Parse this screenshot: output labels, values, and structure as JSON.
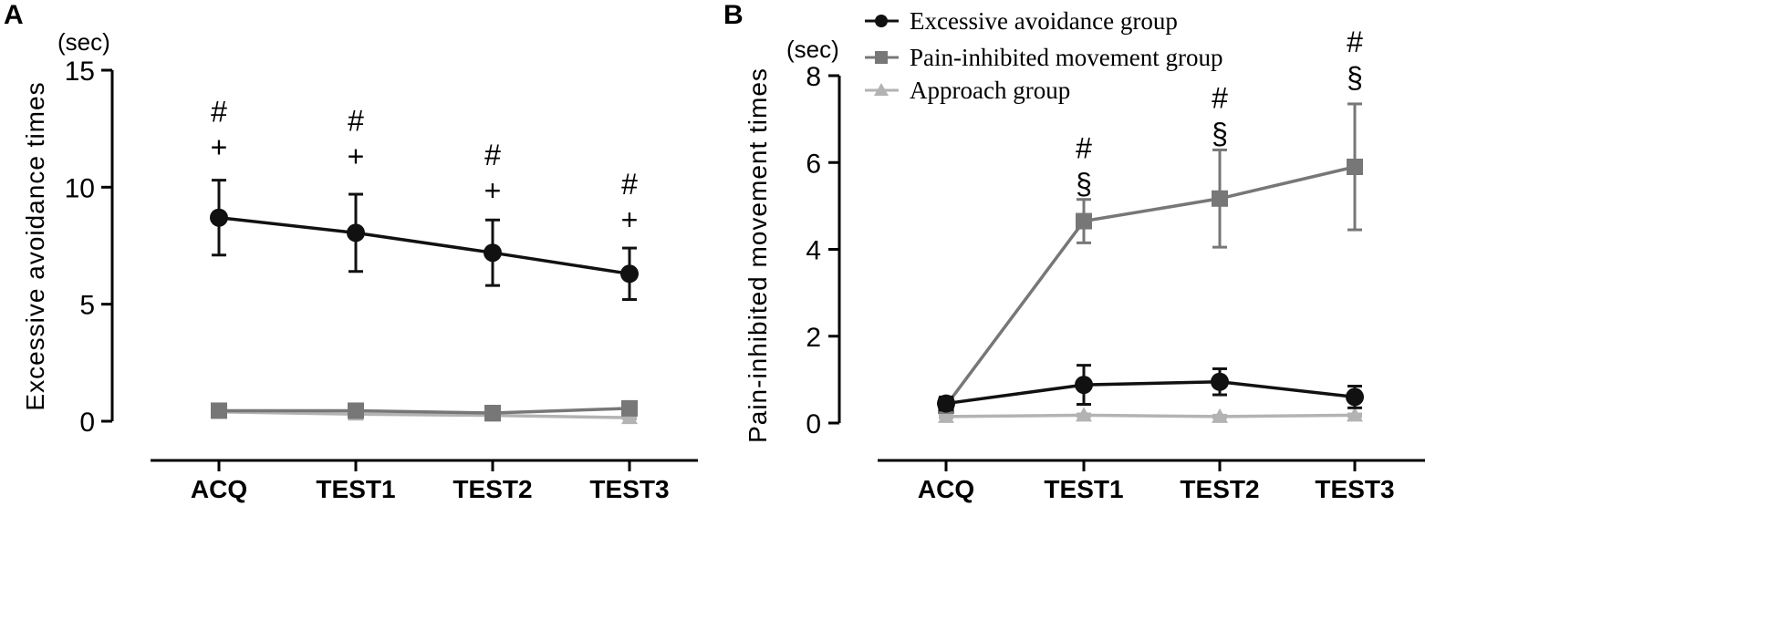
{
  "colors": {
    "excessive": "#111111",
    "pain": "#777777",
    "approach": "#b3b3b3",
    "axis": "#000000"
  },
  "legend": [
    {
      "name": "Excessive avoidance group",
      "marker": "circle",
      "color": "#111111"
    },
    {
      "name": "Pain-inhibited movement group",
      "marker": "square",
      "color": "#777777"
    },
    {
      "name": "Approach group",
      "marker": "triangle",
      "color": "#b3b3b3"
    }
  ],
  "chart_data": [
    {
      "panel": "A",
      "type": "line",
      "unit_label": "(sec)",
      "ylabel": "Excessive avoidance times",
      "categories": [
        "ACQ",
        "TEST1",
        "TEST2",
        "TEST3"
      ],
      "ylim": [
        0,
        15
      ],
      "yticks": [
        0,
        5,
        10,
        15
      ],
      "series": [
        {
          "name": "Excessive avoidance group",
          "marker": "circle",
          "color": "#111111",
          "values": [
            8.7,
            8.05,
            7.2,
            6.3
          ],
          "errors": [
            1.6,
            1.65,
            1.4,
            1.1
          ]
        },
        {
          "name": "Pain-inhibited movement group",
          "marker": "square",
          "color": "#777777",
          "values": [
            0.45,
            0.45,
            0.35,
            0.55
          ],
          "errors": [
            0.05,
            0.05,
            0.05,
            0.05
          ]
        },
        {
          "name": "Approach group",
          "marker": "triangle",
          "color": "#b3b3b3",
          "values": [
            0.4,
            0.3,
            0.25,
            0.15
          ],
          "errors": [
            0.05,
            0.05,
            0.05,
            0.05
          ]
        }
      ],
      "annotations": [
        {
          "category": "ACQ",
          "y": 12.8,
          "lines": [
            "#",
            "+"
          ]
        },
        {
          "category": "TEST1",
          "y": 12.4,
          "lines": [
            "#",
            "+"
          ]
        },
        {
          "category": "TEST2",
          "y": 10.95,
          "lines": [
            "#",
            "+"
          ]
        },
        {
          "category": "TEST3",
          "y": 9.7,
          "lines": [
            "#",
            "+"
          ]
        }
      ]
    },
    {
      "panel": "B",
      "type": "line",
      "unit_label": "(sec)",
      "ylabel": "Pain-inhibited movement times",
      "categories": [
        "ACQ",
        "TEST1",
        "TEST2",
        "TEST3"
      ],
      "ylim": [
        0,
        8
      ],
      "yticks": [
        0,
        2,
        4,
        6,
        8
      ],
      "series": [
        {
          "name": "Excessive avoidance group",
          "marker": "circle",
          "color": "#111111",
          "values": [
            0.45,
            0.88,
            0.95,
            0.6
          ],
          "errors": [
            0.15,
            0.45,
            0.3,
            0.25
          ]
        },
        {
          "name": "Pain-inhibited movement group",
          "marker": "square",
          "color": "#777777",
          "values": [
            0.4,
            4.65,
            5.17,
            5.9
          ],
          "errors": [
            0.1,
            0.5,
            1.12,
            1.45
          ]
        },
        {
          "name": "Approach group",
          "marker": "triangle",
          "color": "#b3b3b3",
          "values": [
            0.15,
            0.18,
            0.15,
            0.18
          ],
          "errors": [
            0.03,
            0.03,
            0.03,
            0.03
          ]
        }
      ],
      "annotations": [
        {
          "category": "TEST1",
          "y": 6.1,
          "lines": [
            "#",
            "§"
          ]
        },
        {
          "category": "TEST2",
          "y": 7.25,
          "lines": [
            "#",
            "§"
          ]
        },
        {
          "category": "TEST3",
          "y": 8.55,
          "lines": [
            "#",
            "§"
          ]
        }
      ]
    }
  ]
}
